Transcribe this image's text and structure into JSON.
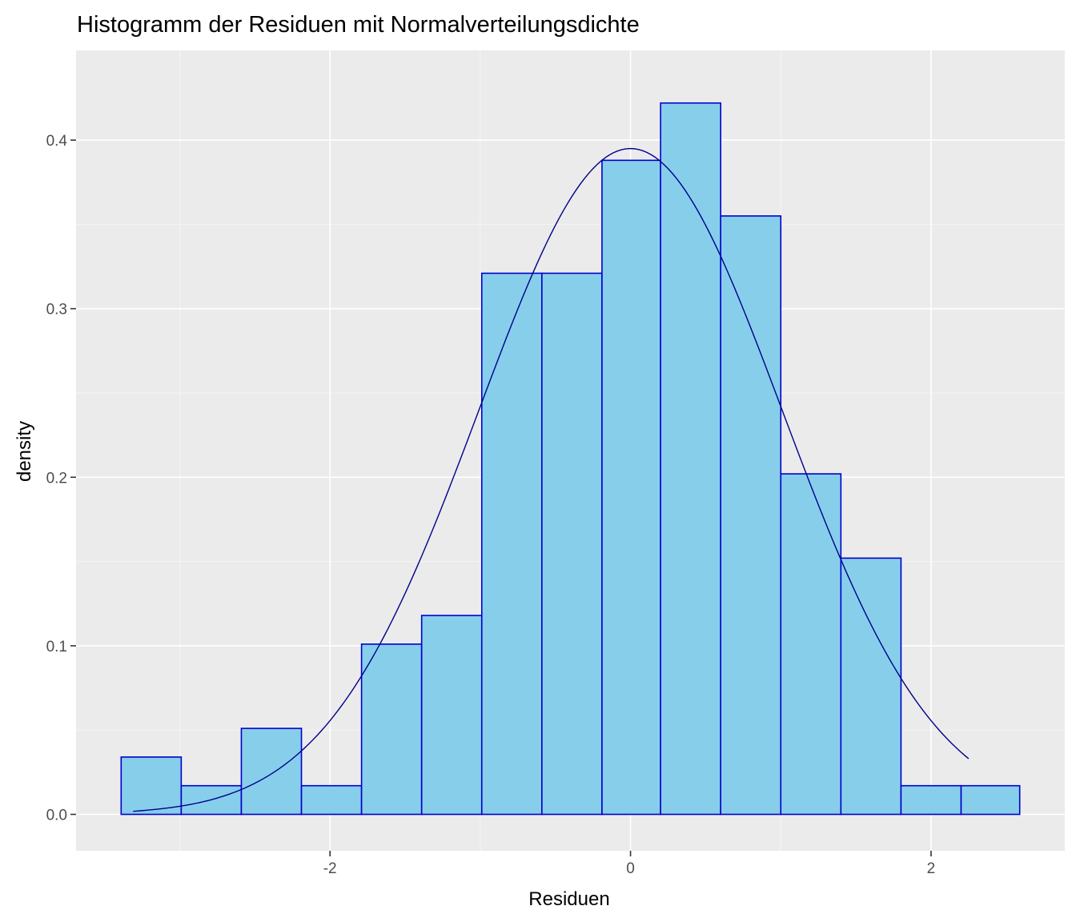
{
  "chart_data": {
    "type": "bar",
    "subtype": "histogram",
    "title": "Histogramm der Residuen mit Normalverteilungsdichte",
    "xlabel": "Residuen",
    "ylabel": "density",
    "xlim": [
      -3.69,
      2.89
    ],
    "ylim": [
      -0.0216,
      0.4532
    ],
    "x_ticks": [
      -2,
      0,
      2
    ],
    "x_tick_labels": [
      "-2",
      "0",
      "2"
    ],
    "y_ticks": [
      0.0,
      0.1,
      0.2,
      0.3,
      0.4
    ],
    "y_tick_labels": [
      "0.0",
      "0.1",
      "0.2",
      "0.3",
      "0.4"
    ],
    "grid": true,
    "legend": "none",
    "bins": [
      {
        "x0": -3.39,
        "x1": -2.99,
        "density": 0.034
      },
      {
        "x0": -2.99,
        "x1": -2.59,
        "density": 0.017
      },
      {
        "x0": -2.59,
        "x1": -2.19,
        "density": 0.051
      },
      {
        "x0": -2.19,
        "x1": -1.79,
        "density": 0.017
      },
      {
        "x0": -1.79,
        "x1": -1.39,
        "density": 0.101
      },
      {
        "x0": -1.39,
        "x1": -0.99,
        "density": 0.118
      },
      {
        "x0": -0.99,
        "x1": -0.59,
        "density": 0.321
      },
      {
        "x0": -0.59,
        "x1": -0.19,
        "density": 0.321
      },
      {
        "x0": -0.19,
        "x1": 0.2,
        "density": 0.388
      },
      {
        "x0": 0.2,
        "x1": 0.6,
        "density": 0.422
      },
      {
        "x0": 0.6,
        "x1": 1.0,
        "density": 0.355
      },
      {
        "x0": 1.0,
        "x1": 1.4,
        "density": 0.202
      },
      {
        "x0": 1.4,
        "x1": 1.8,
        "density": 0.152
      },
      {
        "x0": 1.8,
        "x1": 2.2,
        "density": 0.017
      },
      {
        "x0": 2.2,
        "x1": 2.59,
        "density": 0.017
      }
    ],
    "density_curve": {
      "type": "line",
      "distribution": "normal",
      "mean": 0.0,
      "sd": 1.01,
      "x_range": [
        -3.31,
        2.25
      ]
    },
    "colors": {
      "bar_fill": "#87CEEB",
      "bar_border": "#0000CD",
      "curve": "#00008B",
      "panel_background": "#EBEBEB",
      "grid_major": "#FFFFFF",
      "grid_minor": "#F5F5F5",
      "tick_mark": "#333333",
      "tick_label": "#4D4D4D"
    }
  }
}
